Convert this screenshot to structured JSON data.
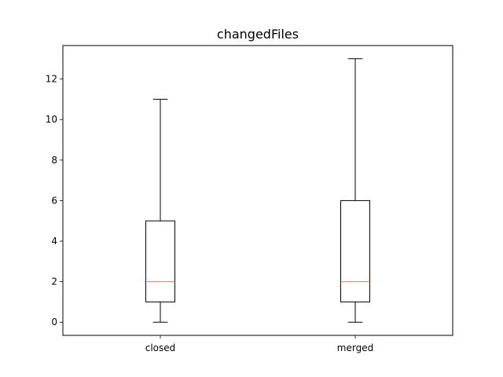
{
  "chart_data": {
    "type": "box",
    "title": "changedFiles",
    "xlabel": "",
    "ylabel": "",
    "categories": [
      "closed",
      "merged"
    ],
    "boxes": [
      {
        "label": "closed",
        "whisker_low": 0,
        "q1": 1,
        "median": 2,
        "q3": 5,
        "whisker_high": 11
      },
      {
        "label": "merged",
        "whisker_low": 0,
        "q1": 1,
        "median": 2,
        "q3": 6,
        "whisker_high": 13
      }
    ],
    "ylim": [
      -0.65,
      13.65
    ],
    "yticks": [
      0,
      2,
      4,
      6,
      8,
      10,
      12
    ],
    "grid": false,
    "legend": "none",
    "colors": {
      "box": "#000000",
      "median": "#ff7f0e",
      "axes": "#000000",
      "background": "#ffffff"
    }
  }
}
